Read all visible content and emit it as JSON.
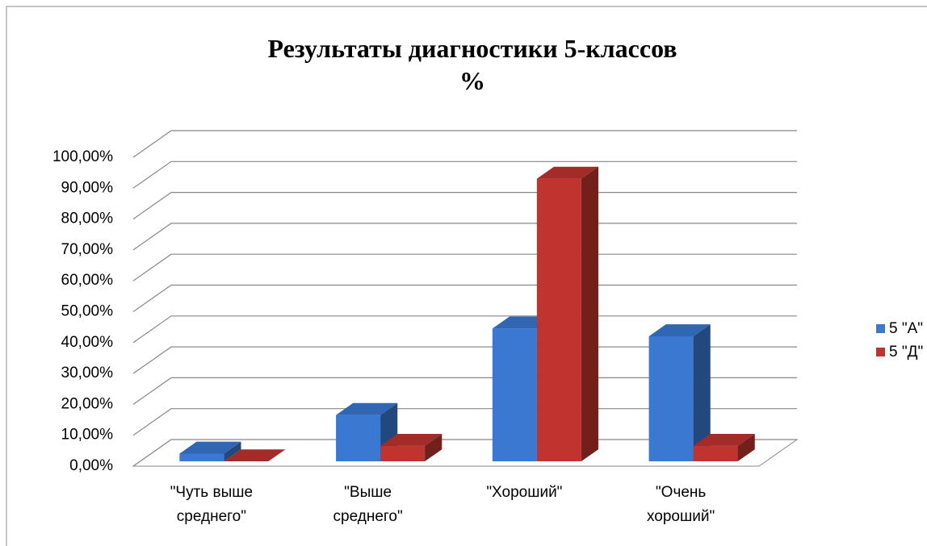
{
  "chart_data": {
    "type": "bar3d",
    "title": "Результаты  диагностики 5-классов\n%",
    "categories": [
      "\"Чуть выше\nсреднего\"",
      "\"Выше\nсреднего\"",
      "\"Хороший\"",
      "\"Очень\nхороший\""
    ],
    "series": [
      {
        "name": "5 \"А\"",
        "color": "#3a78d2",
        "values": [
          2.5,
          15,
          43,
          40.5
        ]
      },
      {
        "name": "5 \"Д\"",
        "color": "#c0332f",
        "values": [
          0,
          5,
          91.5,
          5
        ]
      }
    ],
    "ylim": [
      0,
      100
    ],
    "yticks": [
      {
        "value": 0,
        "label": "0,00%"
      },
      {
        "value": 10,
        "label": "10,00%"
      },
      {
        "value": 20,
        "label": "20,00%"
      },
      {
        "value": 30,
        "label": "30,00%"
      },
      {
        "value": 40,
        "label": "40,00%"
      },
      {
        "value": 50,
        "label": "50,00%"
      },
      {
        "value": 60,
        "label": "60,00%"
      },
      {
        "value": 70,
        "label": "70,00%"
      },
      {
        "value": 80,
        "label": "80,00%"
      },
      {
        "value": 90,
        "label": "90,00%"
      },
      {
        "value": 100,
        "label": "100,00%"
      }
    ],
    "grid": true,
    "legend": "right"
  }
}
